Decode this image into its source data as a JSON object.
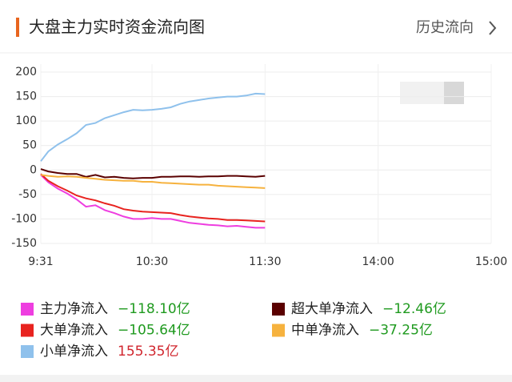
{
  "header": {
    "title": "大盘主力实时资金流向图",
    "link": "历史流向"
  },
  "chart_data": {
    "type": "line",
    "x": [
      1,
      5,
      10,
      15,
      20,
      25,
      30,
      35,
      40,
      45,
      50,
      55,
      60,
      65,
      70,
      75,
      80,
      85,
      90,
      95,
      100,
      105,
      110,
      115,
      120
    ],
    "xlim": [
      1,
      240
    ],
    "xticks": [
      {
        "value": 1,
        "label": "9:31"
      },
      {
        "value": 60,
        "label": "10:30"
      },
      {
        "value": 120,
        "label": "11:30"
      },
      {
        "value": 180,
        "label": "14:00"
      },
      {
        "value": 240,
        "label": "15:00"
      }
    ],
    "ylim": [
      -150,
      200
    ],
    "yticks": [
      -150,
      -100,
      -50,
      0,
      50,
      100,
      150,
      200
    ],
    "grid": true,
    "series": [
      {
        "name": "主力净流入",
        "color": "#ee3ee0",
        "net_label": "−118.10亿",
        "net_color": "#1f9a1f",
        "values": [
          -10,
          -25,
          -38,
          -48,
          -60,
          -75,
          -72,
          -82,
          -88,
          -95,
          -100,
          -100,
          -98,
          -100,
          -100,
          -104,
          -108,
          -110,
          -112,
          -113,
          -115,
          -114,
          -116,
          -118,
          -118
        ]
      },
      {
        "name": "超大单净流入",
        "color": "#5a0000",
        "net_label": "−12.46亿",
        "net_color": "#1f9a1f",
        "values": [
          2,
          -3,
          -6,
          -8,
          -8,
          -14,
          -10,
          -15,
          -14,
          -16,
          -17,
          -16,
          -16,
          -14,
          -14,
          -13,
          -13,
          -14,
          -13,
          -13,
          -12,
          -12,
          -13,
          -14,
          -12
        ]
      },
      {
        "name": "大单净流入",
        "color": "#e8231f",
        "net_label": "−105.64亿",
        "net_color": "#1f9a1f",
        "values": [
          -8,
          -22,
          -33,
          -42,
          -52,
          -58,
          -62,
          -68,
          -73,
          -80,
          -83,
          -85,
          -86,
          -87,
          -88,
          -92,
          -95,
          -97,
          -99,
          -100,
          -102,
          -102,
          -103,
          -104,
          -105
        ]
      },
      {
        "name": "中单净流入",
        "color": "#f6b23e",
        "net_label": "−37.25亿",
        "net_color": "#1f9a1f",
        "values": [
          -10,
          -12,
          -14,
          -13,
          -14,
          -16,
          -18,
          -20,
          -21,
          -22,
          -22,
          -24,
          -24,
          -26,
          -27,
          -28,
          -29,
          -30,
          -30,
          -32,
          -33,
          -34,
          -35,
          -36,
          -37
        ]
      },
      {
        "name": "小单净流入",
        "color": "#8fc1ec",
        "net_label": "155.35亿",
        "net_color": "#d0262e",
        "values": [
          18,
          38,
          52,
          63,
          75,
          92,
          96,
          106,
          112,
          118,
          123,
          122,
          123,
          125,
          128,
          135,
          140,
          143,
          146,
          148,
          150,
          150,
          152,
          156,
          155
        ]
      }
    ]
  }
}
